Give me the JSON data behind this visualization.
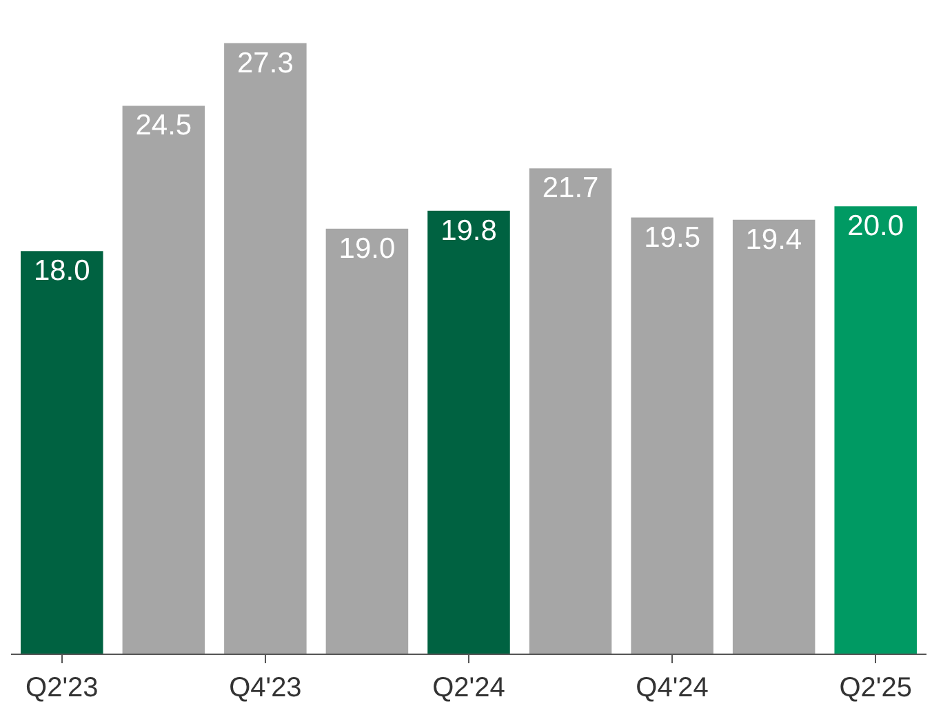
{
  "chart_data": {
    "type": "bar",
    "categories": [
      "Q2'23",
      null,
      "Q4'23",
      null,
      "Q2'24",
      null,
      "Q4'24",
      null,
      "Q2'25"
    ],
    "values": [
      18.0,
      24.5,
      27.3,
      19.0,
      19.8,
      21.7,
      19.5,
      19.4,
      20.0
    ],
    "value_labels": [
      "18.0",
      "24.5",
      "27.3",
      "19.0",
      "19.8",
      "21.7",
      "19.5",
      "19.4",
      "20.0"
    ],
    "colors": [
      "#006241",
      "#a6a6a6",
      "#a6a6a6",
      "#a6a6a6",
      "#006241",
      "#a6a6a6",
      "#a6a6a6",
      "#a6a6a6",
      "#009a63"
    ]
  }
}
